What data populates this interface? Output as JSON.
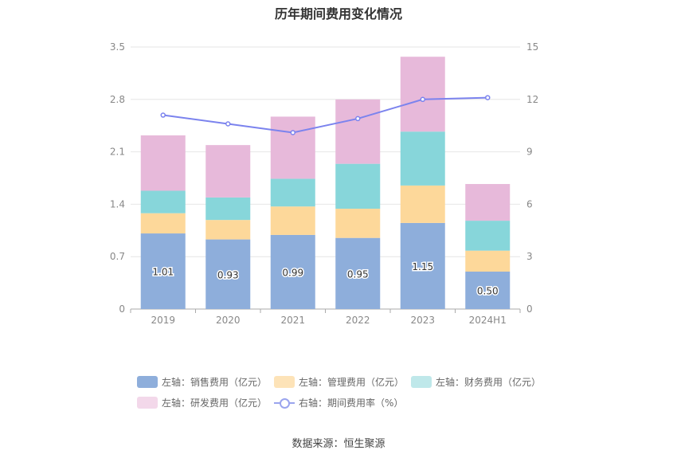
{
  "chart_data": {
    "type": "bar",
    "title": "历年期间费用变化情况",
    "categories": [
      "2019",
      "2020",
      "2021",
      "2022",
      "2023",
      "2024H1"
    ],
    "left_axis": {
      "ylim": [
        0,
        3.5
      ],
      "ticks": [
        "0",
        "0.7",
        "1.4",
        "2.1",
        "2.8",
        "3.5"
      ]
    },
    "right_axis": {
      "ylim": [
        0,
        15
      ],
      "ticks": [
        "0",
        "3",
        "6",
        "9",
        "12",
        "15"
      ]
    },
    "grid": true,
    "legend_position": "bottom",
    "stacked_series": [
      {
        "name": "左轴：销售费用（亿元）",
        "color": "#8eaedb",
        "values": [
          1.01,
          0.93,
          0.99,
          0.95,
          1.15,
          0.5
        ],
        "labels": [
          "1.01",
          "0.93",
          "0.99",
          "0.95",
          "1.15",
          "0.50"
        ]
      },
      {
        "name": "左轴：管理费用（亿元）",
        "color": "#fdd89a",
        "values": [
          0.27,
          0.26,
          0.38,
          0.39,
          0.5,
          0.28
        ]
      },
      {
        "name": "左轴：财务费用（亿元）",
        "color": "#87d6da",
        "values": [
          0.3,
          0.3,
          0.37,
          0.6,
          0.72,
          0.4
        ]
      },
      {
        "name": "左轴：研发费用（亿元）",
        "color": "#e7b9da",
        "values": [
          0.74,
          0.7,
          0.83,
          0.86,
          1.0,
          0.49
        ]
      }
    ],
    "line_series": {
      "name": "右轴：期间费用率（%）",
      "color": "#7b83ee",
      "values": [
        11.1,
        10.6,
        10.1,
        10.9,
        12.0,
        12.1
      ]
    }
  },
  "source": "数据来源：恒生聚源"
}
